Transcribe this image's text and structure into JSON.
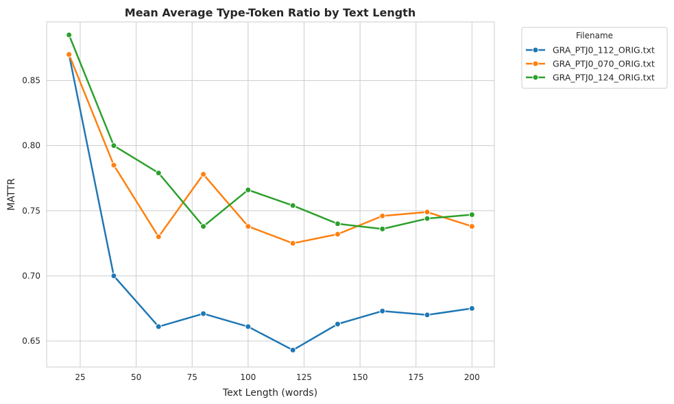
{
  "chart_data": {
    "type": "line",
    "title": "Mean Average Type-Token Ratio by Text Length",
    "xlabel": "Text Length (words)",
    "ylabel": "MATTR",
    "xlim": [
      10,
      210
    ],
    "ylim": [
      0.63,
      0.895
    ],
    "xticks": [
      25,
      50,
      75,
      100,
      125,
      150,
      175,
      200
    ],
    "yticks": [
      0.65,
      0.7,
      0.75,
      0.8,
      0.85
    ],
    "grid": true,
    "legend": {
      "title": "Filename",
      "placement": "outside-top-right"
    },
    "x": [
      20,
      40,
      60,
      80,
      100,
      120,
      140,
      160,
      180,
      200
    ],
    "series": [
      {
        "name": "GRA_PTJ0_112_ORIG.txt",
        "color": "#1f77b4",
        "values": [
          0.87,
          0.7,
          0.661,
          0.671,
          0.661,
          0.643,
          0.663,
          0.673,
          0.67,
          0.675
        ]
      },
      {
        "name": "GRA_PTJ0_070_ORIG.txt",
        "color": "#ff7f0e",
        "values": [
          0.87,
          0.785,
          0.73,
          0.778,
          0.738,
          0.725,
          0.732,
          0.746,
          0.749,
          0.738
        ]
      },
      {
        "name": "GRA_PTJ0_124_ORIG.txt",
        "color": "#2ca02c",
        "values": [
          0.885,
          0.8,
          0.779,
          0.738,
          0.766,
          0.754,
          0.74,
          0.736,
          0.744,
          0.747
        ]
      }
    ]
  }
}
